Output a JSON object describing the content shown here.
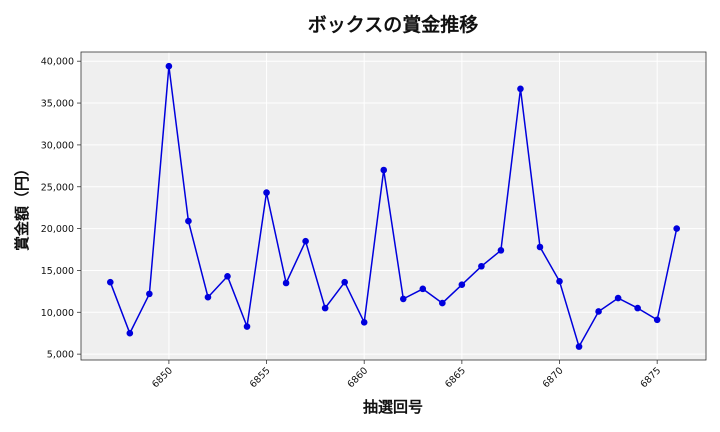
{
  "chart_data": {
    "type": "line",
    "title": "ボックスの賞金推移",
    "xlabel": "抽選回号",
    "ylabel": "賞金額（円）",
    "x": [
      6847,
      6848,
      6849,
      6850,
      6851,
      6852,
      6853,
      6854,
      6855,
      6856,
      6857,
      6858,
      6859,
      6860,
      6861,
      6862,
      6863,
      6864,
      6865,
      6866,
      6867,
      6868,
      6869,
      6870,
      6871,
      6872,
      6873,
      6874,
      6875,
      6876
    ],
    "series": [
      {
        "values": [
          13600,
          7500,
          12200,
          39400,
          20900,
          11800,
          14300,
          8300,
          24300,
          13500,
          18500,
          10500,
          13600,
          8800,
          27000,
          11600,
          12800,
          11100,
          13300,
          15500,
          17400,
          36700,
          17800,
          13700,
          5900,
          10100,
          11700,
          10500,
          9100,
          20000
        ]
      }
    ],
    "xticks": [
      6850,
      6855,
      6860,
      6865,
      6870,
      6875
    ],
    "yticks": [
      5000,
      10000,
      15000,
      20000,
      25000,
      30000,
      35000,
      40000
    ],
    "xlim": [
      6845.5,
      6877.5
    ],
    "ylim": [
      4300,
      41100
    ],
    "grid": true,
    "colors": {
      "line": "#0000dd",
      "marker": "#0000dd",
      "plot_background": "#efefef",
      "grid": "#ffffff",
      "axes": "#333333"
    }
  }
}
